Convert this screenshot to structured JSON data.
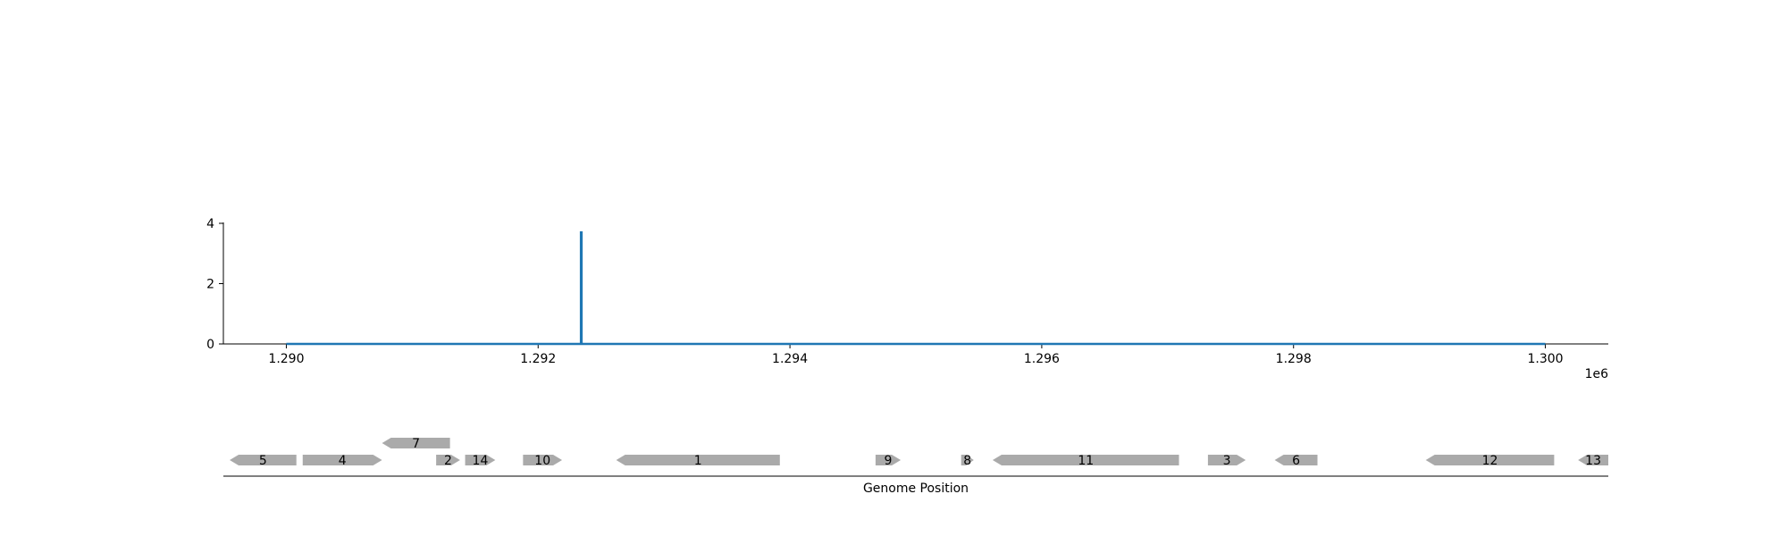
{
  "chart_data": [
    {
      "type": "line",
      "title": "",
      "xlabel": "",
      "ylabel": "",
      "x_offset_label": "1e6",
      "xlim": [
        1289500,
        1300500
      ],
      "ylim": [
        0,
        4
      ],
      "x_ticks": [
        1290000,
        1292000,
        1294000,
        1296000,
        1298000,
        1300000
      ],
      "x_tick_labels": [
        "1.290",
        "1.292",
        "1.294",
        "1.296",
        "1.298",
        "1.300"
      ],
      "y_ticks": [
        0,
        2,
        4
      ],
      "y_tick_labels": [
        "0",
        "2",
        "4"
      ],
      "grid": false,
      "line_color": "#1f77b4",
      "series": [
        {
          "x": [
            1290000,
            1292340,
            1292340,
            1292345,
            1292345,
            1300000
          ],
          "y": [
            0,
            0,
            3.7,
            3.7,
            0,
            0
          ]
        }
      ]
    },
    {
      "type": "gene_track",
      "xlabel": "Genome Position",
      "xlim": [
        1289500,
        1300500
      ],
      "feature_color": "#aaaaaa",
      "features": [
        {
          "label": "5",
          "start": 1289550,
          "end": 1290080,
          "strand": -1,
          "row": 0
        },
        {
          "label": "4",
          "start": 1290130,
          "end": 1290760,
          "strand": 1,
          "row": 0
        },
        {
          "label": "7",
          "start": 1290760,
          "end": 1291300,
          "strand": -1,
          "row": 1
        },
        {
          "label": "2",
          "start": 1291190,
          "end": 1291380,
          "strand": 1,
          "row": 0
        },
        {
          "label": "14",
          "start": 1291420,
          "end": 1291660,
          "strand": 1,
          "row": 0
        },
        {
          "label": "10",
          "start": 1291880,
          "end": 1292190,
          "strand": 1,
          "row": 0
        },
        {
          "label": "1",
          "start": 1292620,
          "end": 1293920,
          "strand": -1,
          "row": 0
        },
        {
          "label": "9",
          "start": 1294680,
          "end": 1294880,
          "strand": 1,
          "row": 0
        },
        {
          "label": "8",
          "start": 1295360,
          "end": 1295460,
          "strand": 1,
          "row": 0
        },
        {
          "label": "11",
          "start": 1295610,
          "end": 1297090,
          "strand": -1,
          "row": 0
        },
        {
          "label": "3",
          "start": 1297320,
          "end": 1297620,
          "strand": 1,
          "row": 0
        },
        {
          "label": "6",
          "start": 1297850,
          "end": 1298190,
          "strand": -1,
          "row": 0
        },
        {
          "label": "12",
          "start": 1299050,
          "end": 1300070,
          "strand": -1,
          "row": 0
        },
        {
          "label": "13",
          "start": 1300260,
          "end": 1300500,
          "strand": -1,
          "row": 0
        }
      ]
    }
  ]
}
